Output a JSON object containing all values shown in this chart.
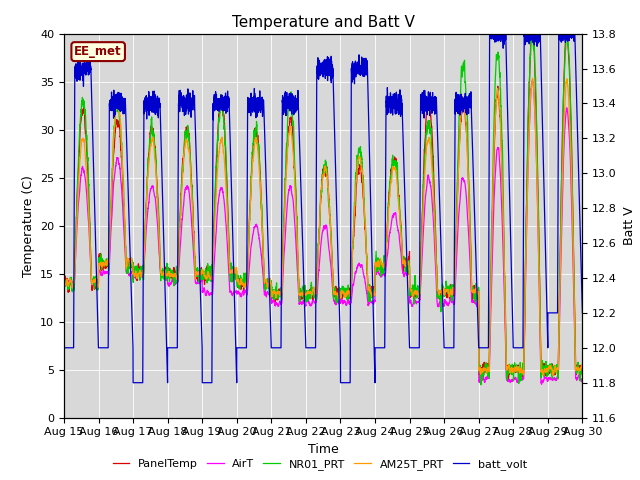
{
  "title": "Temperature and Batt V",
  "xlabel": "Time",
  "ylabel_left": "Temperature (C)",
  "ylabel_right": "Batt V",
  "station_label": "EE_met",
  "left_ylim": [
    0,
    40
  ],
  "right_ylim": [
    11.6,
    13.8
  ],
  "left_yticks": [
    0,
    5,
    10,
    15,
    20,
    25,
    30,
    35,
    40
  ],
  "right_yticks": [
    11.6,
    11.8,
    12.0,
    12.2,
    12.4,
    12.6,
    12.8,
    13.0,
    13.2,
    13.4,
    13.6,
    13.8
  ],
  "x_tick_labels": [
    "Aug 15",
    "Aug 16",
    "Aug 17",
    "Aug 18",
    "Aug 19",
    "Aug 20",
    "Aug 21",
    "Aug 22",
    "Aug 23",
    "Aug 24",
    "Aug 25",
    "Aug 26",
    "Aug 27",
    "Aug 28",
    "Aug 29",
    "Aug 30"
  ],
  "num_days": 15,
  "colors": {
    "PanelTemp": "#dd0000",
    "AirT": "#ff00ff",
    "NR01_PRT": "#00cc00",
    "AM25T_PRT": "#ff9900",
    "batt_volt": "#0000cc"
  },
  "legend_entries": [
    "PanelTemp",
    "AirT",
    "NR01_PRT",
    "AM25T_PRT",
    "batt_volt"
  ],
  "plot_bg_color": "#d8d8d8",
  "title_fontsize": 11,
  "label_fontsize": 9,
  "tick_fontsize": 8
}
